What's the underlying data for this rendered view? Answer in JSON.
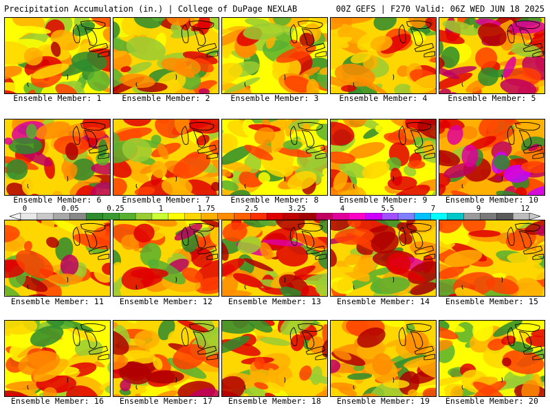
{
  "header": {
    "left_title": "Precipitation Accumulation (in.) | College of DuPage NEXLAB",
    "right_title": "00Z GEFS | F270 Valid: 06Z WED JUN 18 2025"
  },
  "panels": [
    {
      "caption": "Ensemble Member: 1",
      "seed": 11,
      "bias": 0.15
    },
    {
      "caption": "Ensemble Member: 2",
      "seed": 23,
      "bias": 0.3
    },
    {
      "caption": "Ensemble Member: 3",
      "seed": 37,
      "bias": 0.1
    },
    {
      "caption": "Ensemble Member: 4",
      "seed": 41,
      "bias": 0.2
    },
    {
      "caption": "Ensemble Member: 5",
      "seed": 53,
      "bias": 0.45
    },
    {
      "caption": "Ensemble Member: 6",
      "seed": 67,
      "bias": 0.45
    },
    {
      "caption": "Ensemble Member: 7",
      "seed": 71,
      "bias": 0.2
    },
    {
      "caption": "Ensemble Member: 8",
      "seed": 83,
      "bias": 0.1
    },
    {
      "caption": "Ensemble Member: 9",
      "seed": 97,
      "bias": 0.1
    },
    {
      "caption": "Ensemble Member: 10",
      "seed": 101,
      "bias": 0.55
    },
    {
      "caption": "Ensemble Member: 11",
      "seed": 113,
      "bias": 0.3
    },
    {
      "caption": "Ensemble Member: 12",
      "seed": 127,
      "bias": 0.25
    },
    {
      "caption": "Ensemble Member: 13",
      "seed": 131,
      "bias": 0.4
    },
    {
      "caption": "Ensemble Member: 14",
      "seed": 149,
      "bias": 0.35
    },
    {
      "caption": "Ensemble Member: 15",
      "seed": 151,
      "bias": 0.2
    },
    {
      "caption": "Ensemble Member: 16",
      "seed": 163,
      "bias": 0.15
    },
    {
      "caption": "Ensemble Member: 17",
      "seed": 173,
      "bias": 0.25
    },
    {
      "caption": "Ensemble Member: 18",
      "seed": 181,
      "bias": 0.2
    },
    {
      "caption": "Ensemble Member: 19",
      "seed": 191,
      "bias": 0.3
    },
    {
      "caption": "Ensemble Member: 20",
      "seed": 199,
      "bias": 0.15
    }
  ],
  "colorbar": {
    "labels": [
      "0",
      "0.05",
      "0.25",
      "1",
      "1.75",
      "2.5",
      "3.25",
      "4",
      "5.5",
      "7",
      "9",
      "12"
    ],
    "colors": [
      "#e8e8e8",
      "#c8c8c8",
      "#a8a8a8",
      "#888888",
      "#2e8b2e",
      "#3c9a32",
      "#58b030",
      "#9acd32",
      "#ccff33",
      "#ffff00",
      "#ffd700",
      "#ffb000",
      "#ff8c00",
      "#ff6000",
      "#ff3000",
      "#e00000",
      "#c00000",
      "#a00000",
      "#c00060",
      "#e0009a",
      "#ff00c8",
      "#cc00ff",
      "#a050ff",
      "#7f7fff",
      "#00c0ff",
      "#00ffff",
      "#00c8c8",
      "#9a9a9a",
      "#7a7a7a",
      "#5a5a5a",
      "#bcbcbc"
    ]
  },
  "palette": [
    "#2e8b2e",
    "#58b030",
    "#9acd32",
    "#ffff00",
    "#ffd700",
    "#ffb000",
    "#ff8c00",
    "#ff4000",
    "#e00000",
    "#b00000",
    "#c00060",
    "#e0009a",
    "#cc00ff",
    "#00ffff"
  ]
}
